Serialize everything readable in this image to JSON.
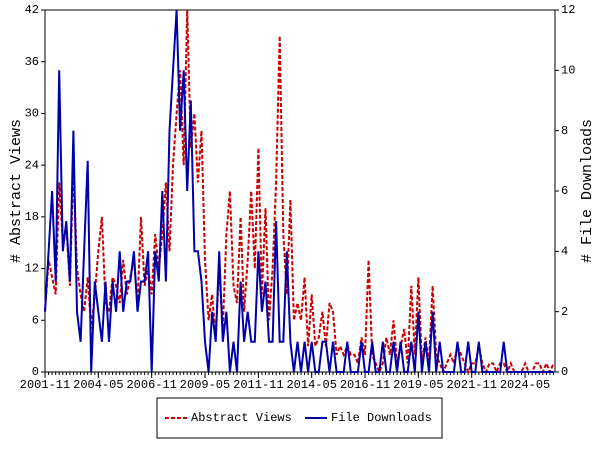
{
  "chart_data": {
    "type": "line",
    "x": [
      "2001-11",
      "2002-01",
      "2002-03",
      "2002-05",
      "2002-07",
      "2002-09",
      "2002-11",
      "2003-01",
      "2003-03",
      "2003-05",
      "2003-07",
      "2003-09",
      "2003-11",
      "2004-01",
      "2004-03",
      "2004-05",
      "2004-07",
      "2004-09",
      "2004-11",
      "2005-01",
      "2005-03",
      "2005-05",
      "2005-07",
      "2005-09",
      "2005-11",
      "2006-01",
      "2006-03",
      "2006-05",
      "2006-07",
      "2006-09",
      "2006-11",
      "2007-01",
      "2007-03",
      "2007-05",
      "2007-07",
      "2007-09",
      "2007-11",
      "2008-01",
      "2008-03",
      "2008-05",
      "2008-07",
      "2008-09",
      "2008-11",
      "2009-01",
      "2009-03",
      "2009-05",
      "2009-07",
      "2009-09",
      "2009-11",
      "2010-01",
      "2010-03",
      "2010-05",
      "2010-07",
      "2010-09",
      "2010-11",
      "2011-01",
      "2011-03",
      "2011-05",
      "2011-07",
      "2011-09",
      "2011-11",
      "2012-01",
      "2012-03",
      "2012-05",
      "2012-07",
      "2012-09",
      "2012-11",
      "2013-01",
      "2013-03",
      "2013-05",
      "2013-07",
      "2013-09",
      "2013-11",
      "2014-01",
      "2014-03",
      "2014-05",
      "2014-07",
      "2014-09",
      "2014-11",
      "2015-01",
      "2015-03",
      "2015-05",
      "2015-07",
      "2015-09",
      "2015-11",
      "2016-01",
      "2016-03",
      "2016-05",
      "2016-07",
      "2016-09",
      "2016-11",
      "2017-01",
      "2017-03",
      "2017-05",
      "2017-07",
      "2017-09",
      "2017-11",
      "2018-01",
      "2018-03",
      "2018-05",
      "2018-07",
      "2018-09",
      "2018-11",
      "2019-01",
      "2019-03",
      "2019-05",
      "2019-07",
      "2019-09",
      "2019-11",
      "2020-01",
      "2020-03",
      "2020-05",
      "2020-07",
      "2020-09",
      "2020-11",
      "2021-01",
      "2021-03",
      "2021-05",
      "2021-07",
      "2021-09",
      "2021-11",
      "2022-01",
      "2022-03",
      "2022-05",
      "2022-07",
      "2022-09",
      "2022-11",
      "2023-01",
      "2023-03",
      "2023-05",
      "2023-07",
      "2023-09",
      "2023-11",
      "2024-01",
      "2024-03",
      "2024-05",
      "2024-07",
      "2024-09",
      "2024-11",
      "2025-01",
      "2025-03",
      "2025-05",
      "2025-07",
      "2025-09"
    ],
    "xticks": [
      "2001-11",
      "2004-05",
      "2006-11",
      "2009-05",
      "2011-11",
      "2014-05",
      "2016-11",
      "2019-05",
      "2021-11",
      "2024-05"
    ],
    "series": [
      {
        "name": "Abstract Views",
        "color": "#cc0000",
        "dash": true,
        "values": [
          7,
          13,
          11,
          9,
          22,
          15,
          17,
          10,
          24,
          12,
          9,
          7,
          11,
          5,
          9,
          14,
          18,
          8,
          7,
          11,
          10,
          8,
          13,
          9,
          11,
          13,
          8,
          18,
          10,
          12,
          9,
          16,
          12,
          16,
          22,
          14,
          24,
          30,
          35,
          24,
          42,
          26,
          30,
          22,
          28,
          13,
          6,
          9,
          4,
          12,
          5,
          16,
          21,
          10,
          8,
          18,
          7,
          13,
          21,
          12,
          26,
          9,
          19,
          6,
          12,
          22,
          39,
          16,
          9,
          20,
          6,
          8,
          6,
          11,
          3,
          9,
          3,
          4,
          7,
          3,
          8,
          7,
          2,
          3,
          2,
          3,
          2,
          2,
          1,
          4,
          2,
          13,
          2,
          1,
          0,
          1,
          4,
          2,
          6,
          1,
          3,
          5,
          1,
          10,
          2,
          11,
          1,
          4,
          1,
          10,
          2,
          1,
          0,
          1,
          2,
          1,
          3,
          2,
          1,
          0,
          1,
          1,
          3,
          1,
          0,
          1,
          1,
          0,
          1,
          1,
          0,
          1,
          0,
          0,
          0,
          1,
          0,
          0,
          1,
          1,
          0,
          1,
          0,
          1
        ]
      },
      {
        "name": "File Downloads",
        "color": "#0000aa",
        "axis": "y2",
        "values": [
          2,
          4,
          6,
          3,
          10,
          4,
          5,
          3,
          8,
          2,
          1,
          4,
          7,
          0,
          3,
          2,
          1,
          3,
          1,
          3,
          2,
          4,
          2,
          3,
          3,
          4,
          2,
          3,
          3,
          4,
          0,
          4,
          3,
          6,
          3,
          8,
          10,
          12,
          8,
          10,
          6,
          9,
          4,
          4,
          3,
          1,
          0,
          2,
          1,
          4,
          1,
          2,
          0,
          1,
          0,
          3,
          1,
          2,
          1,
          1,
          4,
          2,
          3,
          1,
          1,
          5,
          1,
          1,
          4,
          1,
          0,
          1,
          0,
          1,
          0,
          1,
          0,
          0,
          1,
          1,
          0,
          1,
          0,
          0,
          0,
          1,
          0,
          0,
          0,
          1,
          0,
          0,
          1,
          0,
          0,
          1,
          0,
          0,
          1,
          0,
          1,
          0,
          0,
          1,
          0,
          2,
          0,
          1,
          0,
          2,
          0,
          1,
          0,
          0,
          0,
          0,
          1,
          0,
          0,
          1,
          0,
          0,
          1,
          0,
          0,
          0,
          0,
          0,
          0,
          1,
          0,
          0,
          0,
          0,
          0,
          0,
          0,
          0,
          0,
          0,
          0,
          0,
          0,
          0
        ]
      }
    ],
    "ylabel": "# Abstract Views",
    "y2label": "# File Downloads",
    "ylim": [
      0,
      42
    ],
    "yticks": [
      0,
      6,
      12,
      18,
      24,
      30,
      36,
      42
    ],
    "y2lim": [
      0,
      12
    ],
    "y2ticks": [
      0,
      2,
      4,
      6,
      8,
      10,
      12
    ],
    "legend": "bottom"
  }
}
